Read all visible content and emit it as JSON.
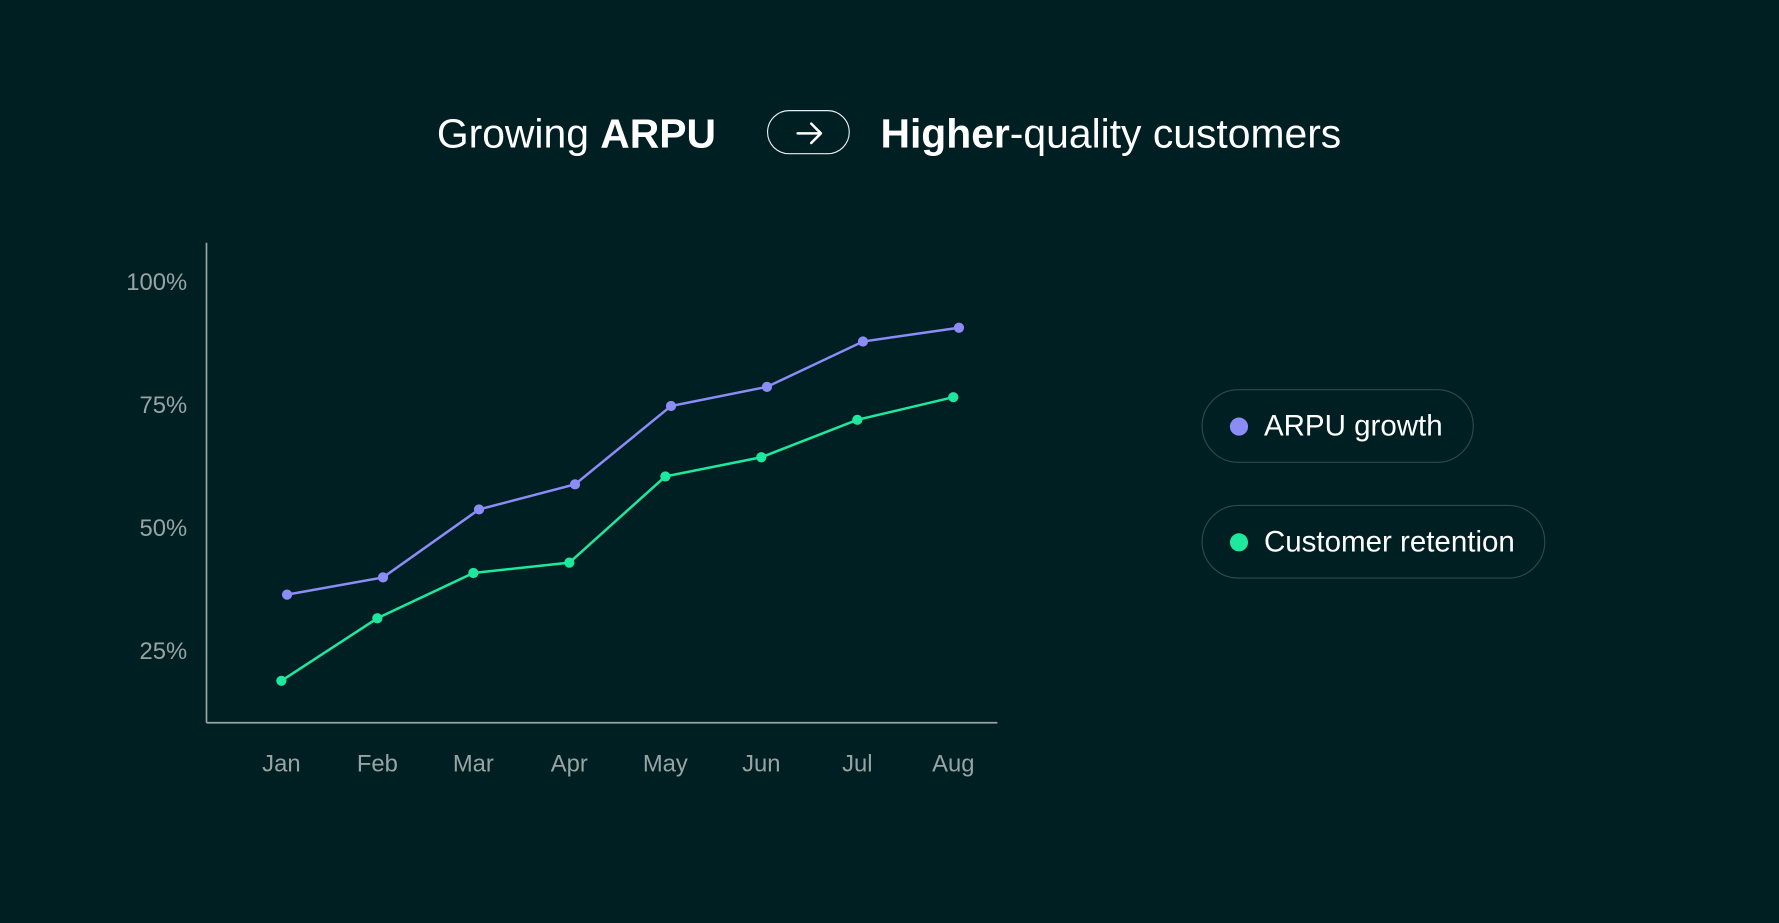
{
  "header": {
    "left_regular": "Growing ",
    "left_bold": "ARPU",
    "arrow_icon": "arrow-right-icon",
    "right_bold": "Higher",
    "right_regular": "-quality customers"
  },
  "colors": {
    "background": "#001f23",
    "arpu": "#8b8cf6",
    "retention": "#1ee89e",
    "axis": "#98a3a3"
  },
  "chart_data": {
    "type": "line",
    "categories": [
      "Jan",
      "Feb",
      "Mar",
      "Apr",
      "May",
      "Jun",
      "Jul",
      "Aug"
    ],
    "yticks": [
      25,
      50,
      75,
      100
    ],
    "ytick_labels": [
      "25%",
      "50%",
      "75%",
      "100%"
    ],
    "ylim": [
      10,
      107
    ],
    "grid": false,
    "legend_position": "right",
    "series": [
      {
        "name": "ARPU growth",
        "color": "#8b8cf6",
        "values": [
          36.5,
          40,
          53.8,
          58.9,
          74.8,
          78.7,
          87.9,
          90.7
        ]
      },
      {
        "name": "Customer retention",
        "color": "#1ee89e",
        "values": [
          19,
          31.7,
          40.9,
          43,
          60.5,
          64.4,
          72,
          76.6
        ]
      }
    ]
  }
}
